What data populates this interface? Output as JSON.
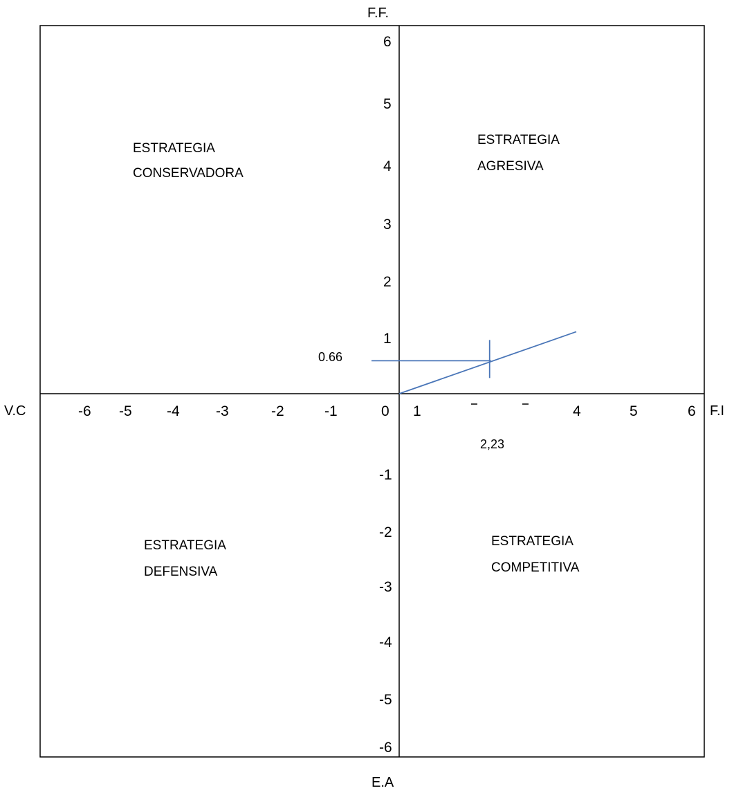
{
  "axes": {
    "top_label": "F.F.",
    "bottom_label": "E.A",
    "left_label": "V.C",
    "right_label": "F.I",
    "x_ticks": [
      "-6",
      "-5",
      "-4",
      "-3",
      "-2",
      "-1",
      "0",
      "1",
      "4",
      "5",
      "6"
    ],
    "y_ticks_positive": [
      "6",
      "5",
      "4",
      "3",
      "2",
      "1"
    ],
    "y_ticks_negative": [
      "-1",
      "-2",
      "-3",
      "-4",
      "-5",
      "-6"
    ],
    "xlim": [
      -6,
      6
    ],
    "ylim": [
      -6,
      6
    ]
  },
  "quadrants": {
    "top_left": {
      "line1": "ESTRATEGIA",
      "line2": "CONSERVADORA"
    },
    "top_right": {
      "line1": "ESTRATEGIA",
      "line2": "AGRESIVA"
    },
    "bottom_left": {
      "line1": "ESTRATEGIA",
      "line2": "DEFENSIVA"
    },
    "bottom_right": {
      "line1": "ESTRATEGIA",
      "line2": "COMPETITIVA"
    }
  },
  "annotations": {
    "y_value_label": "0.66",
    "x_value_label": "2,23"
  },
  "vector": {
    "point_x": 2.23,
    "point_y": 0.66,
    "end_x": 4.0,
    "end_y": 1.3
  },
  "colors": {
    "vector": "#4a76b8",
    "frame": "#000000"
  }
}
